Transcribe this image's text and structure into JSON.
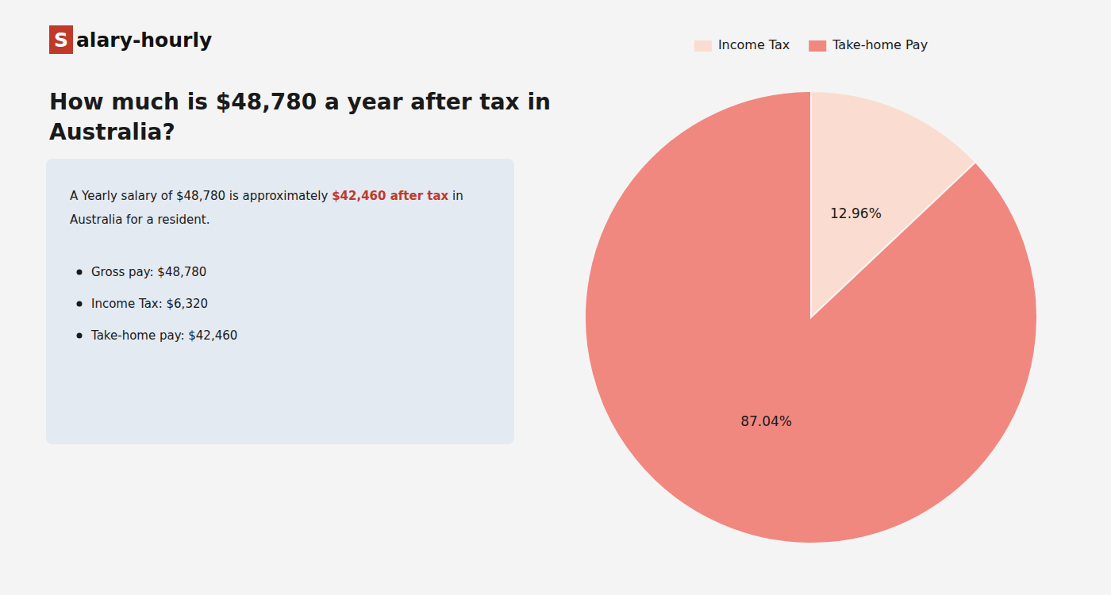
{
  "chart_data": {
    "type": "pie",
    "title": [
      "How much is $48,780 a year after tax in",
      "Australia?"
    ],
    "annotations": [
      "S",
      "alary-hourly",
      "A Yearly salary of $48,780 is approximately ",
      "$42,460 after tax",
      " in",
      "Australia for a resident.",
      "Gross pay: $48,780",
      "Income Tax: $6,320",
      "Take-home pay: $42,460"
    ],
    "categories": [
      "Income Tax",
      "Take-home Pay"
    ],
    "values": [
      12.96,
      87.04
    ],
    "value_labels": [
      "12.96%",
      "87.04%"
    ],
    "data_labels": true,
    "colors": [
      "#faddd0",
      "#f08880"
    ],
    "legend": "top"
  }
}
